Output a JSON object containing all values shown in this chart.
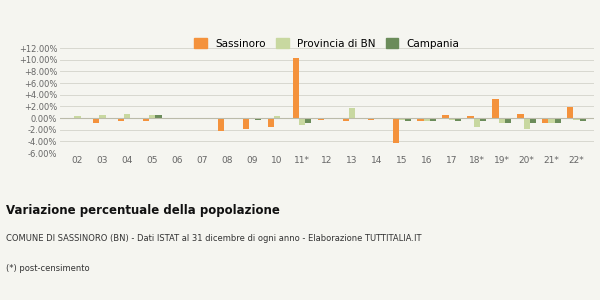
{
  "years": [
    "02",
    "03",
    "04",
    "05",
    "06",
    "07",
    "08",
    "09",
    "10",
    "11*",
    "12",
    "13",
    "14",
    "15",
    "16",
    "17",
    "18*",
    "19*",
    "20*",
    "21*",
    "22*"
  ],
  "sassinoro": [
    0.0,
    -0.8,
    -0.5,
    -0.5,
    0.0,
    0.0,
    -2.2,
    -1.8,
    -1.6,
    10.3,
    -0.3,
    -0.5,
    -0.3,
    -4.3,
    -0.5,
    0.6,
    0.3,
    3.2,
    0.7,
    -0.9,
    1.9
  ],
  "provincia_bn": [
    0.3,
    0.5,
    0.7,
    0.6,
    0.0,
    0.0,
    0.0,
    -0.2,
    0.3,
    -1.1,
    0.0,
    1.8,
    -0.2,
    -0.3,
    -0.5,
    -0.4,
    -1.6,
    -0.8,
    -1.9,
    -0.9,
    -0.4
  ],
  "campania": [
    0.0,
    0.0,
    0.0,
    0.5,
    0.0,
    0.0,
    0.0,
    -0.3,
    0.0,
    -0.8,
    0.0,
    -0.2,
    0.0,
    -0.5,
    -0.5,
    -0.5,
    -0.5,
    -0.8,
    -0.8,
    -0.8,
    -0.5
  ],
  "sassinoro_color": "#f4923c",
  "provincia_color": "#c8d8a0",
  "campania_color": "#6b8c5a",
  "bg_color": "#f5f5f0",
  "grid_color": "#d8d8d0",
  "ylim": [
    -6.0,
    12.0
  ],
  "yticks": [
    -6.0,
    -4.0,
    -2.0,
    0.0,
    2.0,
    4.0,
    6.0,
    8.0,
    10.0,
    12.0
  ],
  "title": "Variazione percentuale della popolazione",
  "subtitle": "COMUNE DI SASSINORO (BN) - Dati ISTAT al 31 dicembre di ogni anno - Elaborazione TUTTITALIA.IT",
  "footnote": "(*) post-censimento",
  "legend_labels": [
    "Sassinoro",
    "Provincia di BN",
    "Campania"
  ]
}
